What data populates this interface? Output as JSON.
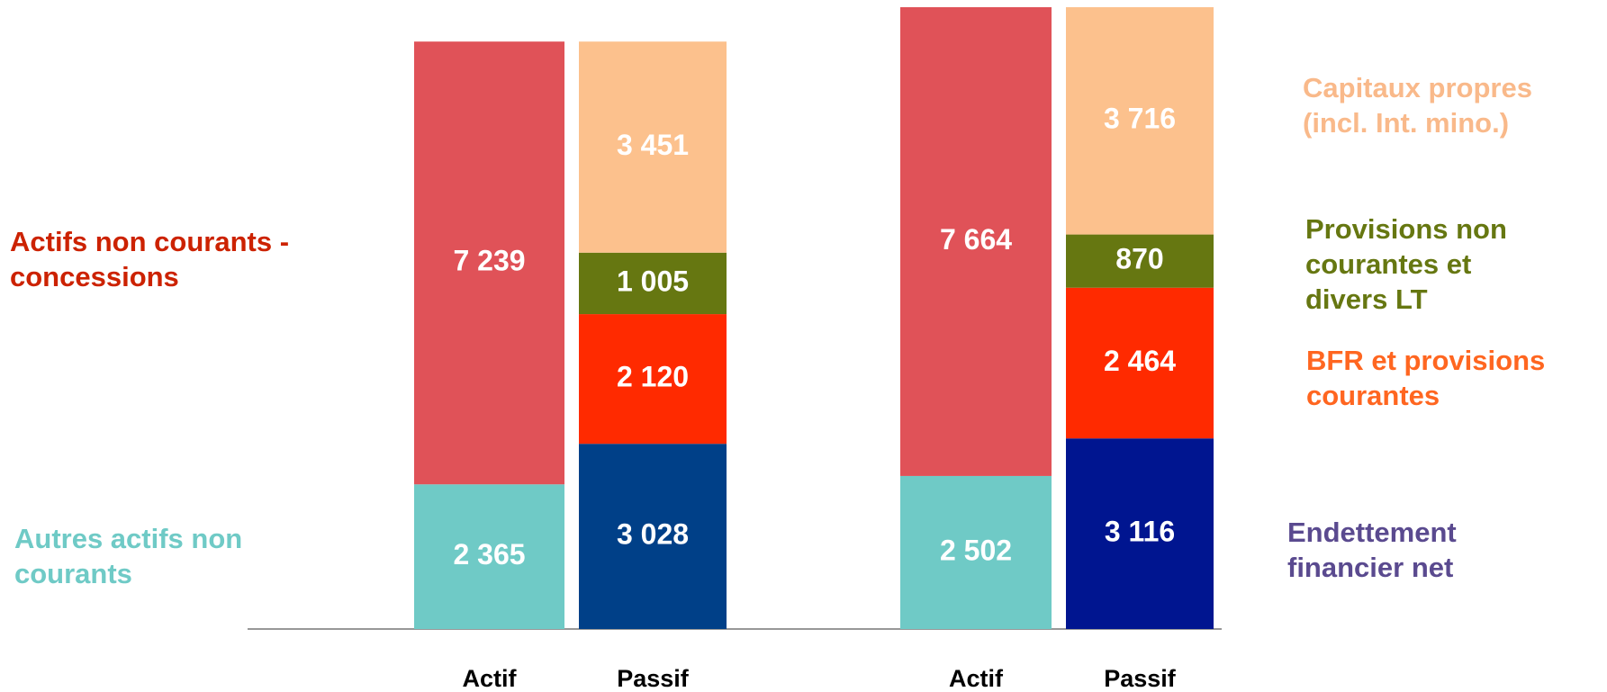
{
  "chart_data": {
    "type": "stacked_bar",
    "columns": [
      {
        "label": "Actif",
        "values": [
          2365,
          7239
        ],
        "value_labels": [
          "2 365",
          "7 239"
        ],
        "colors": [
          "#6fcac6",
          "#e05258"
        ]
      },
      {
        "label": "Passif",
        "values": [
          3028,
          2120,
          1005,
          3451
        ],
        "value_labels": [
          "3 028",
          "2 120",
          "1 005",
          "3 451"
        ],
        "colors": [
          "#004088",
          "#ff2a00",
          "#667711",
          "#fcc18d"
        ]
      },
      {
        "label": "Actif",
        "values": [
          2502,
          7664
        ],
        "value_labels": [
          "2 502",
          "7 664"
        ],
        "colors": [
          "#6fcac6",
          "#e05258"
        ]
      },
      {
        "label": "Passif",
        "values": [
          3116,
          2464,
          870,
          3716
        ],
        "value_labels": [
          "3 116",
          "2 464",
          "870",
          "3 716"
        ],
        "colors": [
          "#001590",
          "#ff2a00",
          "#667711",
          "#fcc18d"
        ]
      }
    ],
    "labels": [
      {
        "lines": [
          "Actifs non courants -",
          "concessions"
        ],
        "color": "#cc2200"
      },
      {
        "lines": [
          "Autres actifs non",
          "courants"
        ],
        "color": "#6fcac6"
      },
      {
        "lines": [
          "Capitaux propres",
          "(incl. Int. mino.)"
        ],
        "color": "#f9b98a"
      },
      {
        "lines": [
          "Provisions non",
          "courantes et",
          "divers LT"
        ],
        "color": "#667711"
      },
      {
        "lines": [
          "BFR et provisions",
          "courantes"
        ],
        "color": "#ff6620"
      },
      {
        "lines": [
          "Endettement",
          "financier net"
        ],
        "color": "#5a4a8f"
      }
    ]
  }
}
